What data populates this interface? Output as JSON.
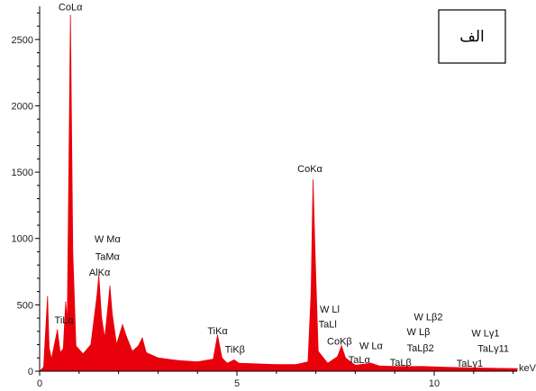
{
  "chart_data": {
    "type": "area",
    "title": "",
    "xlabel": "keV",
    "ylabel": "",
    "xlim": [
      0,
      12.1
    ],
    "ylim": [
      0,
      2750
    ],
    "x_ticks": [
      0,
      5,
      10
    ],
    "y_ticks": [
      0,
      500,
      1000,
      1500,
      2000,
      2500
    ],
    "series_color": "#e8000b",
    "panel_label": "الف",
    "spectrum": [
      {
        "x": 0.0,
        "y": 0
      },
      {
        "x": 0.1,
        "y": 30
      },
      {
        "x": 0.2,
        "y": 560
      },
      {
        "x": 0.24,
        "y": 180
      },
      {
        "x": 0.3,
        "y": 90
      },
      {
        "x": 0.45,
        "y": 310
      },
      {
        "x": 0.52,
        "y": 140
      },
      {
        "x": 0.6,
        "y": 170
      },
      {
        "x": 0.66,
        "y": 520
      },
      {
        "x": 0.7,
        "y": 380
      },
      {
        "x": 0.78,
        "y": 2680
      },
      {
        "x": 0.84,
        "y": 900
      },
      {
        "x": 0.92,
        "y": 190
      },
      {
        "x": 1.1,
        "y": 130
      },
      {
        "x": 1.3,
        "y": 200
      },
      {
        "x": 1.45,
        "y": 560
      },
      {
        "x": 1.5,
        "y": 720
      },
      {
        "x": 1.57,
        "y": 400
      },
      {
        "x": 1.65,
        "y": 250
      },
      {
        "x": 1.73,
        "y": 480
      },
      {
        "x": 1.78,
        "y": 640
      },
      {
        "x": 1.84,
        "y": 430
      },
      {
        "x": 1.95,
        "y": 200
      },
      {
        "x": 2.1,
        "y": 350
      },
      {
        "x": 2.2,
        "y": 260
      },
      {
        "x": 2.35,
        "y": 150
      },
      {
        "x": 2.5,
        "y": 190
      },
      {
        "x": 2.6,
        "y": 250
      },
      {
        "x": 2.7,
        "y": 140
      },
      {
        "x": 3.0,
        "y": 100
      },
      {
        "x": 3.5,
        "y": 80
      },
      {
        "x": 4.0,
        "y": 70
      },
      {
        "x": 4.4,
        "y": 90
      },
      {
        "x": 4.51,
        "y": 270
      },
      {
        "x": 4.62,
        "y": 100
      },
      {
        "x": 4.75,
        "y": 60
      },
      {
        "x": 4.93,
        "y": 85
      },
      {
        "x": 5.05,
        "y": 60
      },
      {
        "x": 5.5,
        "y": 55
      },
      {
        "x": 6.0,
        "y": 50
      },
      {
        "x": 6.5,
        "y": 50
      },
      {
        "x": 6.8,
        "y": 70
      },
      {
        "x": 6.88,
        "y": 600
      },
      {
        "x": 6.93,
        "y": 1440
      },
      {
        "x": 6.98,
        "y": 900
      },
      {
        "x": 7.06,
        "y": 150
      },
      {
        "x": 7.3,
        "y": 60
      },
      {
        "x": 7.55,
        "y": 110
      },
      {
        "x": 7.65,
        "y": 190
      },
      {
        "x": 7.75,
        "y": 100
      },
      {
        "x": 8.0,
        "y": 45
      },
      {
        "x": 8.4,
        "y": 60
      },
      {
        "x": 8.6,
        "y": 40
      },
      {
        "x": 9.0,
        "y": 35
      },
      {
        "x": 9.7,
        "y": 35
      },
      {
        "x": 10.5,
        "y": 28
      },
      {
        "x": 11.0,
        "y": 25
      },
      {
        "x": 11.5,
        "y": 22
      },
      {
        "x": 12.1,
        "y": 20
      }
    ],
    "annotations": [
      {
        "text": "CoLα",
        "x": 0.78,
        "y": 2720
      },
      {
        "text": "W Mα",
        "x": 1.72,
        "y": 970
      },
      {
        "text": "TaMα",
        "x": 1.72,
        "y": 840
      },
      {
        "text": "AlKα",
        "x": 1.52,
        "y": 720
      },
      {
        "text": "TiLα",
        "x": 0.62,
        "y": 360
      },
      {
        "text": "TiKα",
        "x": 4.51,
        "y": 280
      },
      {
        "text": "TiKβ",
        "x": 4.95,
        "y": 140
      },
      {
        "text": "CoKα",
        "x": 6.85,
        "y": 1500
      },
      {
        "text": "W Ll",
        "x": 7.35,
        "y": 440
      },
      {
        "text": "TaLl",
        "x": 7.3,
        "y": 330
      },
      {
        "text": "CoKβ",
        "x": 7.6,
        "y": 200
      },
      {
        "text": "W Lα",
        "x": 8.4,
        "y": 165
      },
      {
        "text": "TaLα",
        "x": 8.1,
        "y": 60
      },
      {
        "text": "W Lβ2",
        "x": 9.85,
        "y": 385
      },
      {
        "text": "W Lβ",
        "x": 9.6,
        "y": 270
      },
      {
        "text": "TaLβ2",
        "x": 9.65,
        "y": 150
      },
      {
        "text": "TaLβ",
        "x": 9.15,
        "y": 40
      },
      {
        "text": "W Lγ1",
        "x": 11.3,
        "y": 260
      },
      {
        "text": "TaLγ11",
        "x": 11.5,
        "y": 145
      },
      {
        "text": "TaLγ1",
        "x": 10.9,
        "y": 35
      }
    ]
  }
}
